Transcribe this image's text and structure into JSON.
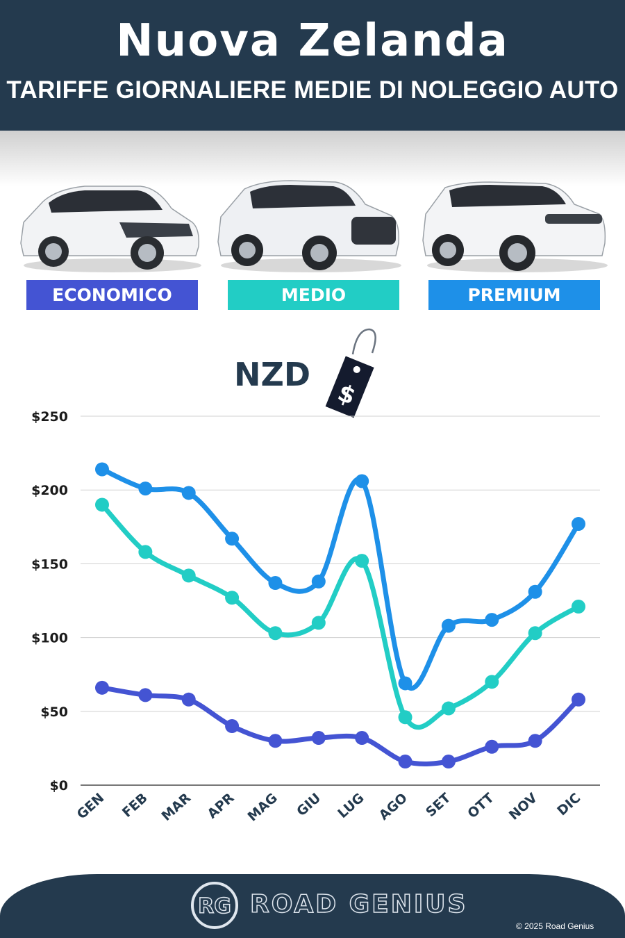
{
  "header": {
    "title": "Nuova Zelanda",
    "subtitle": "TARIFFE GIORNALIERE MEDIE DI NOLEGGIO AUTO"
  },
  "categories": [
    {
      "label": "ECONOMICO",
      "color": "#4454d3"
    },
    {
      "label": "MEDIO",
      "color": "#22cdc5"
    },
    {
      "label": "PREMIUM",
      "color": "#1e90e8"
    }
  ],
  "currency_label": "NZD",
  "price_tag_symbol": "$",
  "chart_data": {
    "type": "line",
    "title": "",
    "xlabel": "",
    "ylabel": "",
    "categories": [
      "GEN",
      "FEB",
      "MAR",
      "APR",
      "MAG",
      "GIU",
      "LUG",
      "AGO",
      "SET",
      "OTT",
      "NOV",
      "DIC"
    ],
    "yticks": [
      "$0",
      "$50",
      "$100",
      "$150",
      "$200",
      "$250"
    ],
    "ylim": [
      0,
      250
    ],
    "grid": true,
    "series": [
      {
        "name": "ECONOMICO",
        "color": "#4454d3",
        "values": [
          66,
          61,
          58,
          40,
          30,
          32,
          32,
          16,
          16,
          26,
          30,
          58
        ]
      },
      {
        "name": "MEDIO",
        "color": "#22cdc5",
        "values": [
          190,
          158,
          142,
          127,
          103,
          110,
          152,
          46,
          52,
          70,
          103,
          121
        ]
      },
      {
        "name": "PREMIUM",
        "color": "#1e90e8",
        "values": [
          214,
          201,
          198,
          167,
          137,
          138,
          206,
          69,
          108,
          112,
          131,
          177
        ]
      }
    ]
  },
  "footer": {
    "logo_text": "RG",
    "brand": "ROAD GENIUS",
    "copyright": "© 2025 Road Genius"
  }
}
